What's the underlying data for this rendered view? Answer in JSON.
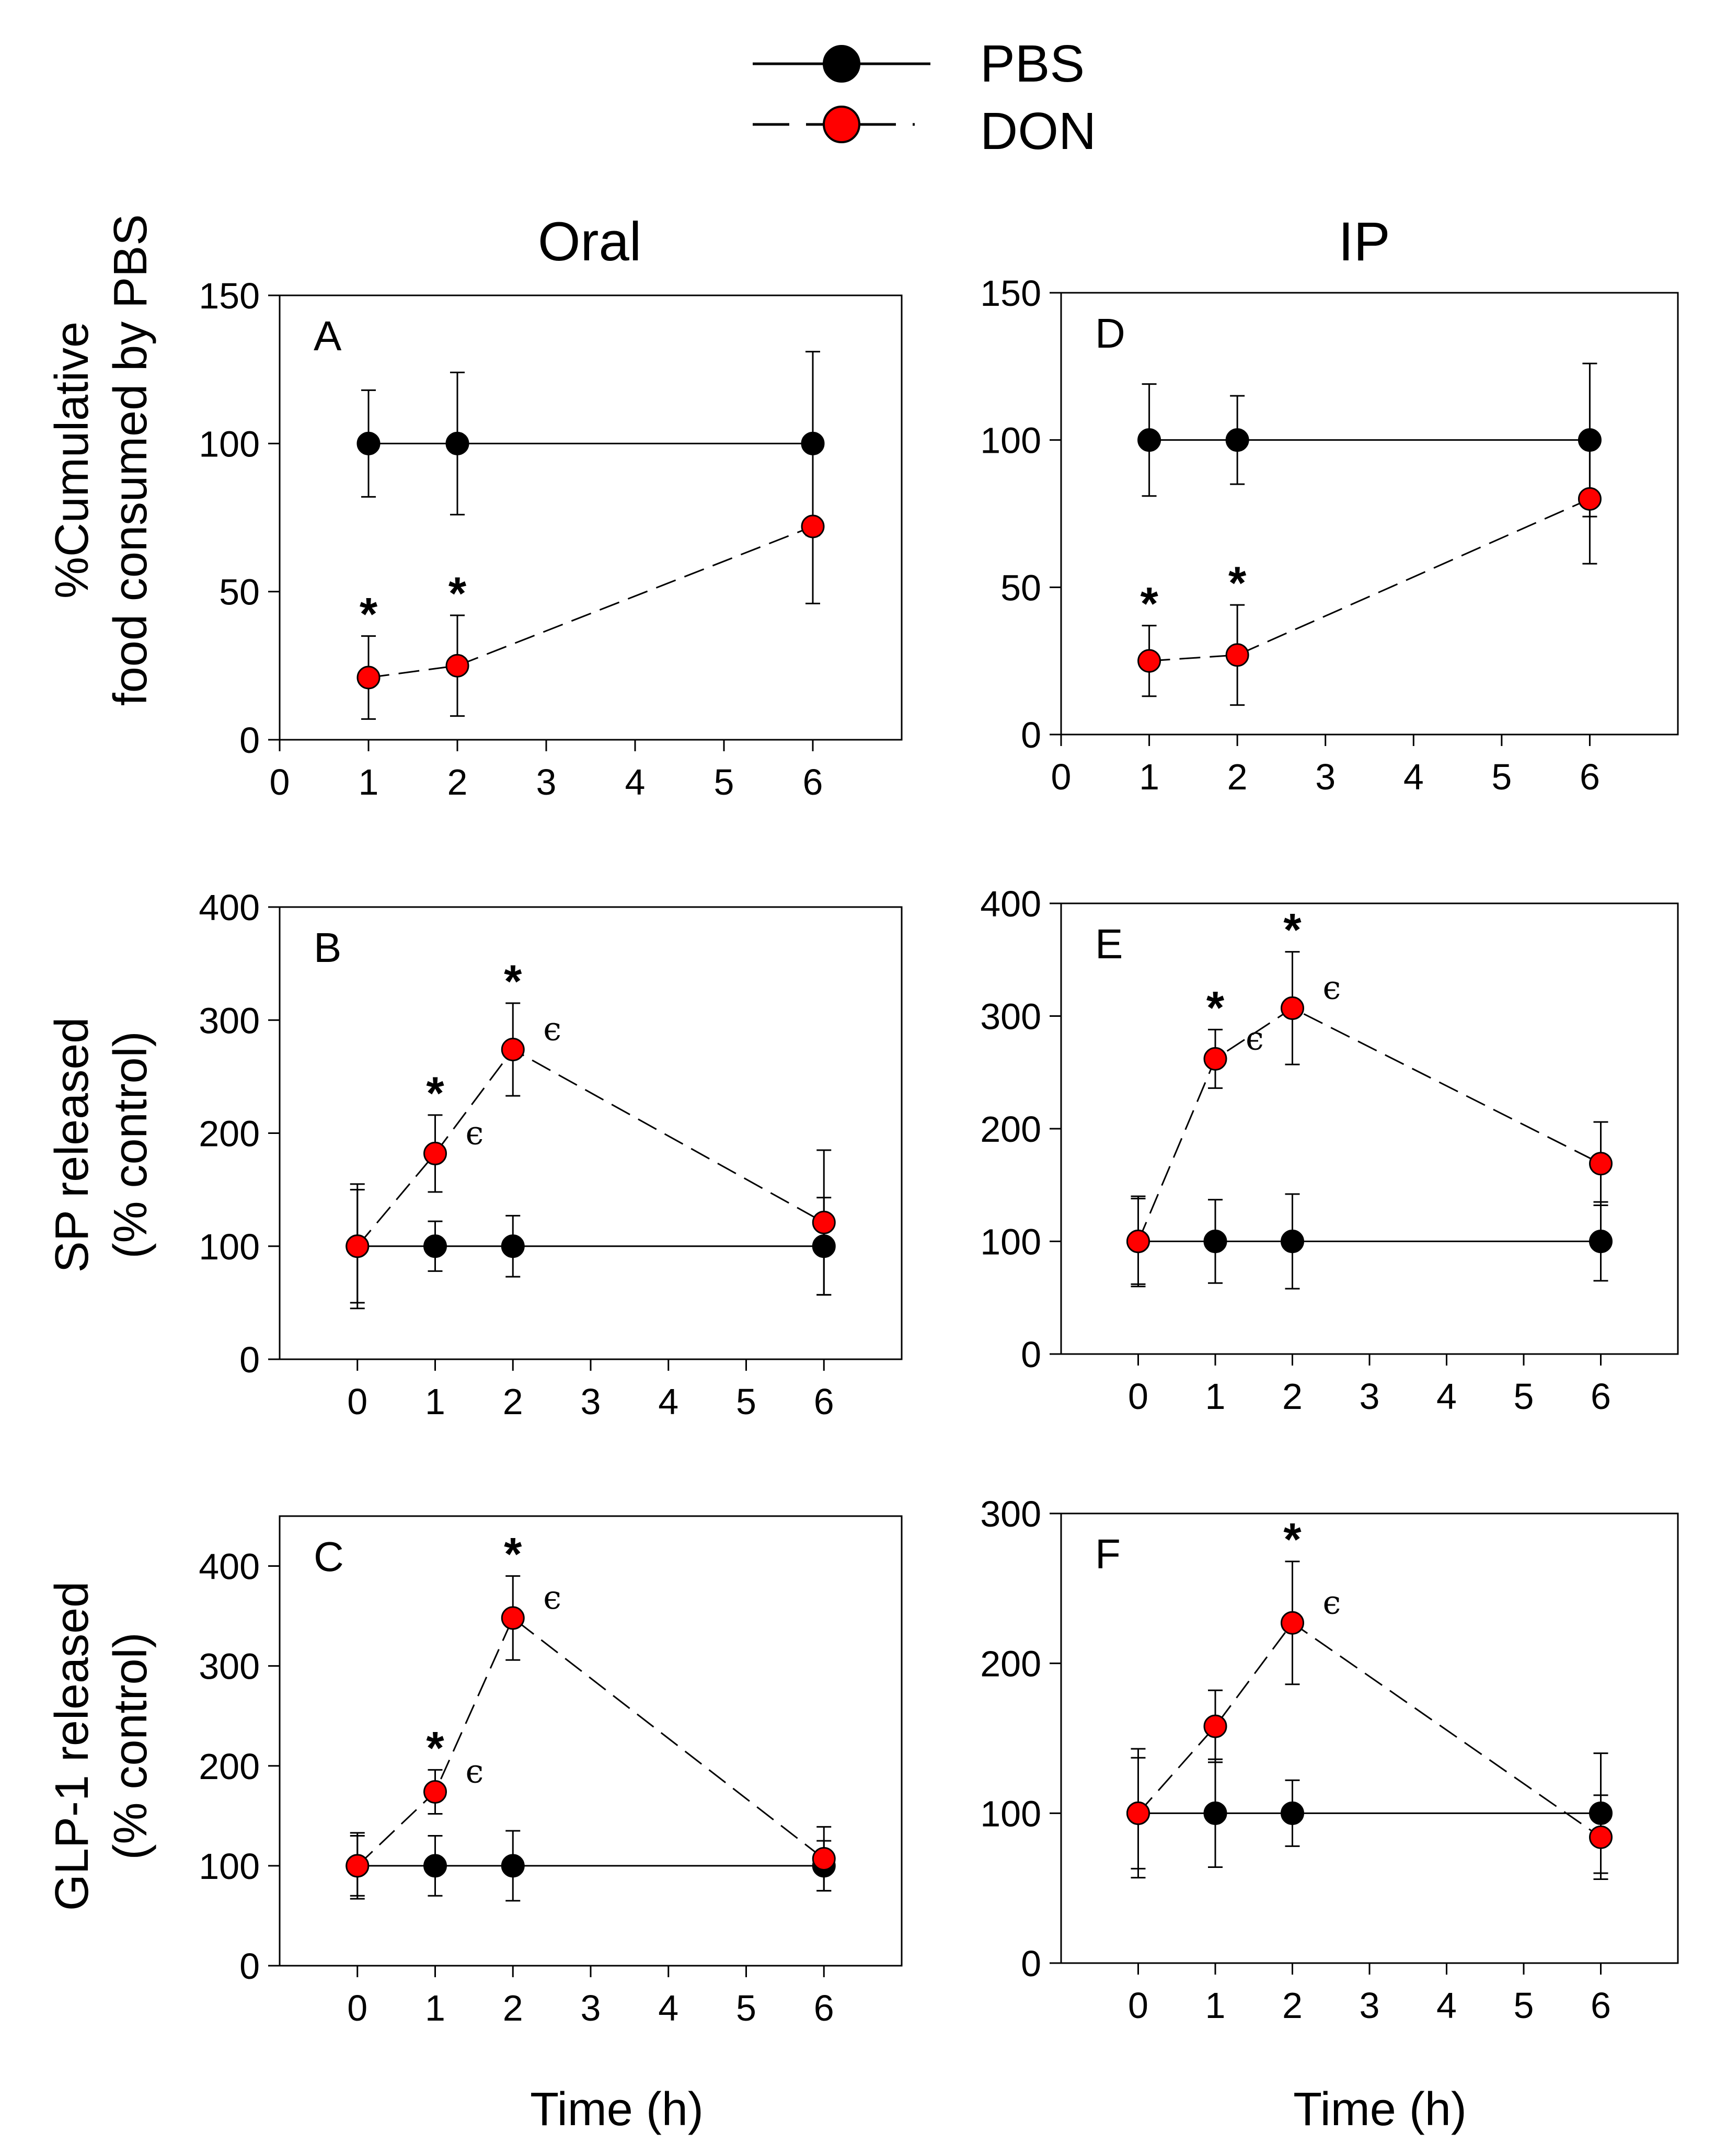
{
  "legend": {
    "entries": [
      {
        "label": "PBS",
        "marker_color": "#000000",
        "line_style": "solid"
      },
      {
        "label": "DON",
        "marker_color": "#ff0000",
        "line_style": "dashed"
      }
    ]
  },
  "column_titles": [
    "Oral",
    "IP"
  ],
  "row_ylabels": [
    [
      "%Cumulative",
      "food consumed by PBS"
    ],
    [
      "SP released",
      "(% control)"
    ],
    [
      "GLP-1 released",
      "(% control)"
    ]
  ],
  "xlabel": "Time (h)",
  "colors": {
    "pbs": "#000000",
    "don": "#ff0000",
    "axes": "#000000",
    "background": "#ffffff"
  },
  "chart_data": [
    {
      "panel": "A",
      "type": "line",
      "column": "Oral",
      "title": "",
      "xlabel": "",
      "ylabel": "%Cumulative food consumed by PBS",
      "xticks": [
        0,
        1,
        2,
        3,
        4,
        5,
        6
      ],
      "xlim": [
        0,
        7
      ],
      "yticks": [
        0,
        50,
        100,
        150
      ],
      "ylim": [
        0,
        150
      ],
      "series": [
        {
          "name": "PBS",
          "x": [
            1,
            2,
            6
          ],
          "y": [
            100,
            100,
            100
          ],
          "err": [
            18,
            24,
            31
          ]
        },
        {
          "name": "DON",
          "x": [
            1,
            2,
            6
          ],
          "y": [
            21,
            25,
            72
          ],
          "err": [
            14,
            17,
            26
          ]
        }
      ],
      "annotations": [
        {
          "x": 1,
          "y": 35,
          "text": "*"
        },
        {
          "x": 2,
          "y": 42,
          "text": "*"
        }
      ]
    },
    {
      "panel": "B",
      "type": "line",
      "column": "Oral",
      "xlabel": "",
      "ylabel": "SP released (% control)",
      "xticks": [
        0,
        1,
        2,
        3,
        4,
        5,
        6
      ],
      "xlim": [
        -1,
        7
      ],
      "yticks": [
        0,
        100,
        200,
        300,
        400
      ],
      "ylim": [
        0,
        400
      ],
      "series": [
        {
          "name": "PBS",
          "x": [
            0,
            1,
            2,
            6
          ],
          "y": [
            100,
            100,
            100,
            100
          ],
          "err": [
            50,
            22,
            27,
            43
          ]
        },
        {
          "name": "DON",
          "x": [
            0,
            1,
            2,
            6
          ],
          "y": [
            100,
            182,
            274,
            121
          ],
          "err": [
            55,
            34,
            41,
            64
          ]
        }
      ],
      "annotations": [
        {
          "x": 1,
          "y": 216,
          "text": "*"
        },
        {
          "x": 2,
          "y": 315,
          "text": "*"
        },
        {
          "x": 1,
          "y": 182,
          "text": "ϵ"
        },
        {
          "x": 2,
          "y": 274,
          "text": "ϵ"
        }
      ]
    },
    {
      "panel": "C",
      "type": "line",
      "column": "Oral",
      "xlabel": "Time (h)",
      "ylabel": "GLP-1 released (% control)",
      "xticks": [
        0,
        1,
        2,
        3,
        4,
        5,
        6
      ],
      "xlim": [
        -1,
        7
      ],
      "yticks": [
        0,
        100,
        200,
        300,
        400
      ],
      "ylim": [
        0,
        450
      ],
      "series": [
        {
          "name": "PBS",
          "x": [
            0,
            1,
            2,
            6
          ],
          "y": [
            100,
            100,
            100,
            100
          ],
          "err": [
            30,
            30,
            35,
            25
          ]
        },
        {
          "name": "DON",
          "x": [
            0,
            1,
            2,
            6
          ],
          "y": [
            100,
            174,
            348,
            107
          ],
          "err": [
            33,
            22,
            42,
            32
          ]
        }
      ],
      "annotations": [
        {
          "x": 1,
          "y": 196,
          "text": "*"
        },
        {
          "x": 2,
          "y": 390,
          "text": "*"
        },
        {
          "x": 1,
          "y": 174,
          "text": "ϵ"
        },
        {
          "x": 2,
          "y": 348,
          "text": "ϵ"
        }
      ]
    },
    {
      "panel": "D",
      "type": "line",
      "column": "IP",
      "xlabel": "",
      "ylabel": "",
      "xticks": [
        0,
        1,
        2,
        3,
        4,
        5,
        6
      ],
      "xlim": [
        0,
        7
      ],
      "yticks": [
        0,
        50,
        100,
        150
      ],
      "ylim": [
        0,
        150
      ],
      "series": [
        {
          "name": "PBS",
          "x": [
            1,
            2,
            6
          ],
          "y": [
            100,
            100,
            100
          ],
          "err": [
            19,
            15,
            26
          ]
        },
        {
          "name": "DON",
          "x": [
            1,
            2,
            6
          ],
          "y": [
            25,
            27,
            80
          ],
          "err": [
            12,
            17,
            22
          ]
        }
      ],
      "annotations": [
        {
          "x": 1,
          "y": 37,
          "text": "*"
        },
        {
          "x": 2,
          "y": 44,
          "text": "*"
        }
      ]
    },
    {
      "panel": "E",
      "type": "line",
      "column": "IP",
      "xlabel": "",
      "ylabel": "",
      "xticks": [
        0,
        1,
        2,
        3,
        4,
        5,
        6
      ],
      "xlim": [
        -1,
        7
      ],
      "yticks": [
        0,
        100,
        200,
        300,
        400
      ],
      "ylim": [
        0,
        400
      ],
      "series": [
        {
          "name": "PBS",
          "x": [
            0,
            1,
            2,
            6
          ],
          "y": [
            100,
            100,
            100,
            100
          ],
          "err": [
            40,
            37,
            42,
            35
          ]
        },
        {
          "name": "DON",
          "x": [
            0,
            1,
            2,
            6
          ],
          "y": [
            100,
            262,
            307,
            169
          ],
          "err": [
            38,
            26,
            50,
            37
          ]
        }
      ],
      "annotations": [
        {
          "x": 1,
          "y": 288,
          "text": "*"
        },
        {
          "x": 2,
          "y": 357,
          "text": "*"
        },
        {
          "x": 1,
          "y": 262,
          "text": "ϵ"
        },
        {
          "x": 2,
          "y": 307,
          "text": "ϵ"
        }
      ]
    },
    {
      "panel": "F",
      "type": "line",
      "column": "IP",
      "xlabel": "Time (h)",
      "ylabel": "",
      "xticks": [
        0,
        1,
        2,
        3,
        4,
        5,
        6
      ],
      "xlim": [
        -1,
        7
      ],
      "yticks": [
        0,
        100,
        200,
        300
      ],
      "ylim": [
        0,
        300
      ],
      "series": [
        {
          "name": "PBS",
          "x": [
            0,
            1,
            2,
            6
          ],
          "y": [
            100,
            100,
            100,
            100
          ],
          "err": [
            37,
            36,
            22,
            40
          ]
        },
        {
          "name": "DON",
          "x": [
            0,
            1,
            2,
            6
          ],
          "y": [
            100,
            158,
            227,
            84
          ],
          "err": [
            43,
            24,
            41,
            28
          ]
        }
      ],
      "annotations": [
        {
          "x": 2,
          "y": 268,
          "text": "*"
        },
        {
          "x": 2,
          "y": 227,
          "text": "ϵ"
        }
      ]
    }
  ]
}
